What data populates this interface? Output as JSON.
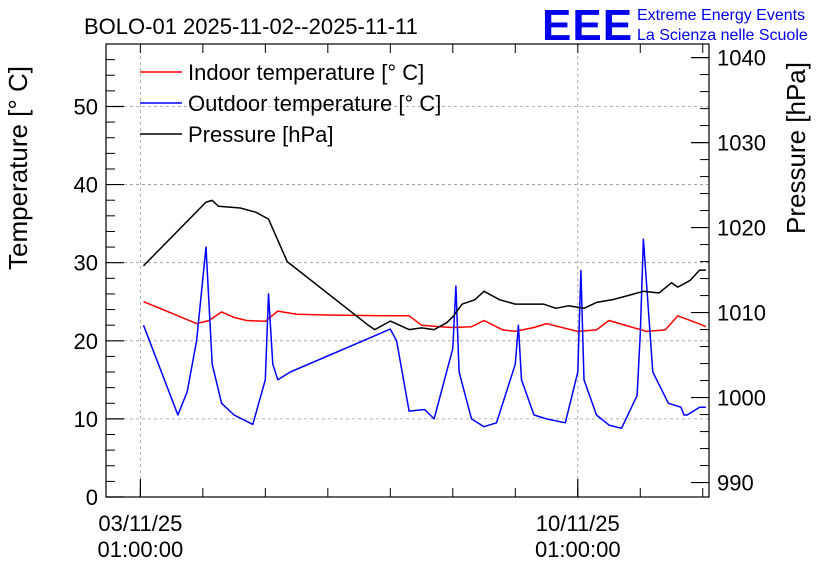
{
  "chart_data": {
    "type": "line",
    "title": "BOLO-01 2025-11-02--2025-11-11",
    "ylabel": "Temperature [° C]",
    "y2label": "Pressure [hPa]",
    "ylim": [
      0,
      58
    ],
    "y2lim": [
      988.3,
      1041.6
    ],
    "xlim": [
      -0.55,
      9.1
    ],
    "grid": true,
    "legend_position": "top-left",
    "colors": {
      "indoor": "#ff0000",
      "outdoor": "#0000ff",
      "pressure": "#000000"
    },
    "y_ticks": [
      "0",
      "10",
      "20",
      "30",
      "40",
      "50"
    ],
    "y2_ticks": [
      "990",
      "1000",
      "1010",
      "1020",
      "1030",
      "1040"
    ],
    "x_ticks": [
      {
        "day": 0,
        "line1": "03/11/25",
        "line2": "01:00:00"
      },
      {
        "day": 7,
        "line1": "10/11/25",
        "line2": "01:00:00"
      }
    ],
    "logo": {
      "mark": "EEE",
      "line1": "Extreme Energy Events",
      "line2": "La Scienza nelle Scuole"
    },
    "series": [
      {
        "name": "Indoor temperature [° C]",
        "key": "indoor",
        "axis": "left",
        "x": [
          0.05,
          0.3,
          0.6,
          0.9,
          1.1,
          1.3,
          1.5,
          1.7,
          2.0,
          2.2,
          2.5,
          3.0,
          4.0,
          4.3,
          4.5,
          4.8,
          5.0,
          5.3,
          5.5,
          5.8,
          6.0,
          6.3,
          6.5,
          6.8,
          7.0,
          7.3,
          7.5,
          7.8,
          8.1,
          8.4,
          8.6,
          8.9,
          9.05
        ],
        "values": [
          25.0,
          24.2,
          23.2,
          22.2,
          22.6,
          23.7,
          23.0,
          22.6,
          22.5,
          23.8,
          23.4,
          23.3,
          23.2,
          23.2,
          22.0,
          21.8,
          21.7,
          21.8,
          22.6,
          21.4,
          21.2,
          21.7,
          22.2,
          21.6,
          21.2,
          21.4,
          22.6,
          21.9,
          21.2,
          21.4,
          23.2,
          22.3,
          21.8
        ]
      },
      {
        "name": "Outdoor temperature [° C]",
        "key": "outdoor",
        "axis": "left",
        "x": [
          0.05,
          0.6,
          0.75,
          0.9,
          1.05,
          1.15,
          1.3,
          1.5,
          1.8,
          2.0,
          2.05,
          2.12,
          2.2,
          2.4,
          4.0,
          4.1,
          4.3,
          4.55,
          4.7,
          5.0,
          5.05,
          5.1,
          5.3,
          5.5,
          5.7,
          6.0,
          6.05,
          6.1,
          6.3,
          6.5,
          6.8,
          7.0,
          7.05,
          7.1,
          7.3,
          7.5,
          7.7,
          7.95,
          8.0,
          8.05,
          8.2,
          8.45,
          8.65,
          8.7,
          8.75,
          8.95,
          9.05
        ],
        "values": [
          22.0,
          10.5,
          13.5,
          20.0,
          32.0,
          17.0,
          12.0,
          10.5,
          9.3,
          15.0,
          26.0,
          17.0,
          15.0,
          16.0,
          21.5,
          20.0,
          11.0,
          11.2,
          10.0,
          19.0,
          27.0,
          16.0,
          10.0,
          9.0,
          9.5,
          17.0,
          22.0,
          15.0,
          10.5,
          10.0,
          9.5,
          16.0,
          29.0,
          15.0,
          10.5,
          9.2,
          8.8,
          13.0,
          21.0,
          33.0,
          16.0,
          12.0,
          11.5,
          10.5,
          10.5,
          11.5,
          11.5
        ]
      },
      {
        "name": "Pressure [hPa]",
        "key": "pressure",
        "axis": "right",
        "x": [
          0.05,
          1.05,
          1.15,
          1.25,
          1.6,
          1.85,
          2.05,
          2.35,
          3.65,
          3.75,
          4.0,
          4.15,
          4.3,
          4.5,
          4.7,
          4.9,
          5.0,
          5.15,
          5.35,
          5.5,
          5.75,
          6.0,
          6.2,
          6.45,
          6.65,
          6.85,
          7.1,
          7.3,
          7.55,
          7.8,
          8.05,
          8.3,
          8.5,
          8.6,
          8.8,
          8.95,
          9.05
        ],
        "values": [
          1015.5,
          1023.0,
          1023.2,
          1022.5,
          1022.3,
          1021.8,
          1021.0,
          1016.0,
          1008.5,
          1008.0,
          1009.0,
          1008.5,
          1008.0,
          1008.2,
          1008.0,
          1008.8,
          1009.5,
          1011.0,
          1011.5,
          1012.5,
          1011.5,
          1011.0,
          1011.0,
          1011.0,
          1010.5,
          1010.8,
          1010.5,
          1011.2,
          1011.5,
          1012.0,
          1012.5,
          1012.3,
          1013.5,
          1013.0,
          1013.8,
          1015.0,
          1015.0
        ]
      }
    ]
  }
}
